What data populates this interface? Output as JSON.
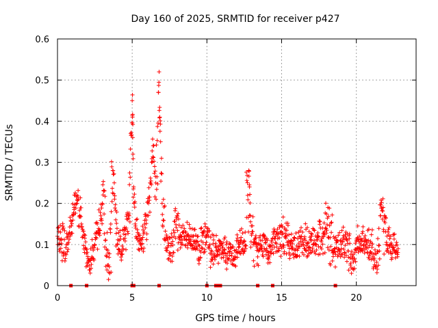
{
  "chart_data": {
    "type": "scatter",
    "title": "Day 160 of 2025, SRMTID for receiver p427",
    "xlabel": "GPS time / hours",
    "ylabel": "SRMTID / TECUs",
    "xlim": [
      0,
      24
    ],
    "ylim": [
      0,
      0.6
    ],
    "xticks": [
      0,
      5,
      10,
      15,
      20
    ],
    "xtick_labels": [
      "0",
      "5",
      "10",
      "15",
      "20"
    ],
    "yticks": [
      0,
      0.1,
      0.2,
      0.3,
      0.4,
      0.5,
      0.6
    ],
    "ytick_labels": [
      "0",
      "0.1",
      "0.2",
      "0.3",
      "0.4",
      "0.5",
      "0.6"
    ],
    "grid": true,
    "legend": "none",
    "marker_color": "#ff0000",
    "marker": "plus",
    "series": [
      {
        "name": "SRMTID",
        "note": "dense scatter of ~1400 points; baseline mostly 0.03–0.17 TECU with spikes",
        "points": [
          [
            0.0,
            0.12
          ],
          [
            0.1,
            0.1
          ],
          [
            0.2,
            0.13
          ],
          [
            0.3,
            0.08
          ],
          [
            0.4,
            0.14
          ],
          [
            0.5,
            0.06
          ],
          [
            0.6,
            0.1
          ],
          [
            0.8,
            0.13
          ],
          [
            1.0,
            0.17
          ],
          [
            1.1,
            0.19
          ],
          [
            1.3,
            0.2
          ],
          [
            1.4,
            0.21
          ],
          [
            1.6,
            0.15
          ],
          [
            1.7,
            0.12
          ],
          [
            1.9,
            0.09
          ],
          [
            2.1,
            0.06
          ],
          [
            2.3,
            0.07
          ],
          [
            2.5,
            0.1
          ],
          [
            2.7,
            0.13
          ],
          [
            2.9,
            0.17
          ],
          [
            3.0,
            0.2
          ],
          [
            3.1,
            0.23
          ],
          [
            3.2,
            0.11
          ],
          [
            3.4,
            0.05
          ],
          [
            3.5,
            0.03
          ],
          [
            3.6,
            0.18
          ],
          [
            3.7,
            0.28
          ],
          [
            3.8,
            0.25
          ],
          [
            3.9,
            0.16
          ],
          [
            4.0,
            0.1
          ],
          [
            4.2,
            0.12
          ],
          [
            4.4,
            0.09
          ],
          [
            4.6,
            0.14
          ],
          [
            4.8,
            0.17
          ],
          [
            4.9,
            0.37
          ],
          [
            5.0,
            0.45
          ],
          [
            5.02,
            0.41
          ],
          [
            5.05,
            0.32
          ],
          [
            5.1,
            0.24
          ],
          [
            5.2,
            0.15
          ],
          [
            5.4,
            0.12
          ],
          [
            5.6,
            0.1
          ],
          [
            5.8,
            0.13
          ],
          [
            6.0,
            0.17
          ],
          [
            6.1,
            0.2
          ],
          [
            6.2,
            0.25
          ],
          [
            6.3,
            0.3
          ],
          [
            6.4,
            0.34
          ],
          [
            6.5,
            0.29
          ],
          [
            6.6,
            0.21
          ],
          [
            6.75,
            0.47
          ],
          [
            6.8,
            0.52
          ],
          [
            6.85,
            0.41
          ],
          [
            6.9,
            0.35
          ],
          [
            7.0,
            0.2
          ],
          [
            7.2,
            0.11
          ],
          [
            7.5,
            0.08
          ],
          [
            7.8,
            0.12
          ],
          [
            8.0,
            0.17
          ],
          [
            8.3,
            0.1
          ],
          [
            8.6,
            0.13
          ],
          [
            9.0,
            0.09
          ],
          [
            9.4,
            0.12
          ],
          [
            9.8,
            0.08
          ],
          [
            10.0,
            0.14
          ],
          [
            10.2,
            0.1
          ],
          [
            10.5,
            0.07
          ],
          [
            10.8,
            0.11
          ],
          [
            11.0,
            0.08
          ],
          [
            11.3,
            0.1
          ],
          [
            11.6,
            0.06
          ],
          [
            12.0,
            0.08
          ],
          [
            12.3,
            0.11
          ],
          [
            12.6,
            0.09
          ],
          [
            12.8,
            0.28
          ],
          [
            12.85,
            0.24
          ],
          [
            12.9,
            0.17
          ],
          [
            13.1,
            0.1
          ],
          [
            13.4,
            0.07
          ],
          [
            13.7,
            0.11
          ],
          [
            14.0,
            0.09
          ],
          [
            14.3,
            0.08
          ],
          [
            14.6,
            0.12
          ],
          [
            14.9,
            0.1
          ],
          [
            15.2,
            0.14
          ],
          [
            15.5,
            0.08
          ],
          [
            15.8,
            0.11
          ],
          [
            16.1,
            0.09
          ],
          [
            16.4,
            0.13
          ],
          [
            16.7,
            0.07
          ],
          [
            17.0,
            0.12
          ],
          [
            17.3,
            0.1
          ],
          [
            17.6,
            0.14
          ],
          [
            17.9,
            0.08
          ],
          [
            18.1,
            0.19
          ],
          [
            18.4,
            0.06
          ],
          [
            18.7,
            0.11
          ],
          [
            19.0,
            0.09
          ],
          [
            19.3,
            0.13
          ],
          [
            19.6,
            0.05
          ],
          [
            19.9,
            0.08
          ],
          [
            20.2,
            0.12
          ],
          [
            20.5,
            0.1
          ],
          [
            20.8,
            0.11
          ],
          [
            21.1,
            0.07
          ],
          [
            21.4,
            0.04
          ],
          [
            21.6,
            0.17
          ],
          [
            21.8,
            0.19
          ],
          [
            22.0,
            0.1
          ],
          [
            22.3,
            0.12
          ],
          [
            22.6,
            0.08
          ],
          [
            22.8,
            0.09
          ]
        ]
      }
    ],
    "zero_markers_x": [
      0.9,
      1.95,
      5.0,
      5.1,
      6.8,
      10.0,
      10.6,
      10.8,
      10.9,
      13.4,
      14.4,
      18.6
    ]
  }
}
